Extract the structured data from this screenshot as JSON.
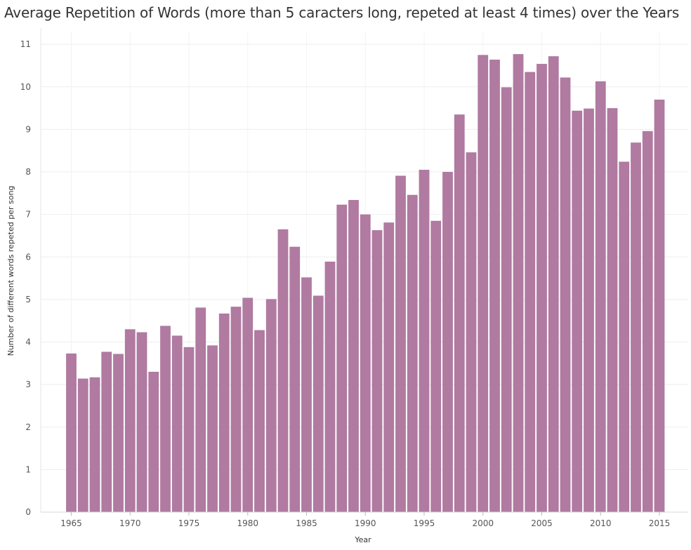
{
  "chart_data": {
    "type": "bar",
    "title": "Average Repetition of Words (more than 5 caracters long, repeted at least 4 times) over the Years",
    "xlabel": "Year",
    "ylabel": "Number of different words repeted per song",
    "ylim": [
      0,
      11.3
    ],
    "yticks": [
      0,
      1,
      2,
      3,
      4,
      5,
      6,
      7,
      8,
      9,
      10,
      11
    ],
    "xticks": [
      1965,
      1970,
      1975,
      1980,
      1985,
      1990,
      1995,
      2000,
      2005,
      2010,
      2015
    ],
    "grid": true,
    "bar_color": "#b07aa1",
    "categories": [
      1965,
      1966,
      1967,
      1968,
      1969,
      1970,
      1971,
      1972,
      1973,
      1974,
      1975,
      1976,
      1977,
      1978,
      1979,
      1980,
      1981,
      1982,
      1983,
      1984,
      1985,
      1986,
      1987,
      1988,
      1989,
      1990,
      1991,
      1992,
      1993,
      1994,
      1995,
      1996,
      1997,
      1998,
      1999,
      2000,
      2001,
      2002,
      2003,
      2004,
      2005,
      2006,
      2007,
      2008,
      2009,
      2010,
      2011,
      2012,
      2013,
      2014,
      2015
    ],
    "values": [
      3.73,
      3.14,
      3.17,
      3.77,
      3.72,
      4.3,
      4.23,
      3.3,
      4.38,
      4.15,
      3.88,
      4.81,
      3.92,
      4.67,
      4.83,
      5.04,
      4.28,
      5.01,
      6.65,
      6.24,
      5.52,
      5.09,
      5.89,
      7.23,
      7.34,
      7.0,
      6.63,
      6.81,
      7.91,
      7.46,
      8.05,
      6.85,
      8.0,
      9.35,
      8.46,
      10.75,
      10.64,
      9.99,
      10.77,
      10.35,
      10.54,
      10.72,
      10.22,
      9.44,
      9.49,
      10.13,
      9.5,
      8.24,
      8.69,
      8.96,
      9.7
    ]
  }
}
